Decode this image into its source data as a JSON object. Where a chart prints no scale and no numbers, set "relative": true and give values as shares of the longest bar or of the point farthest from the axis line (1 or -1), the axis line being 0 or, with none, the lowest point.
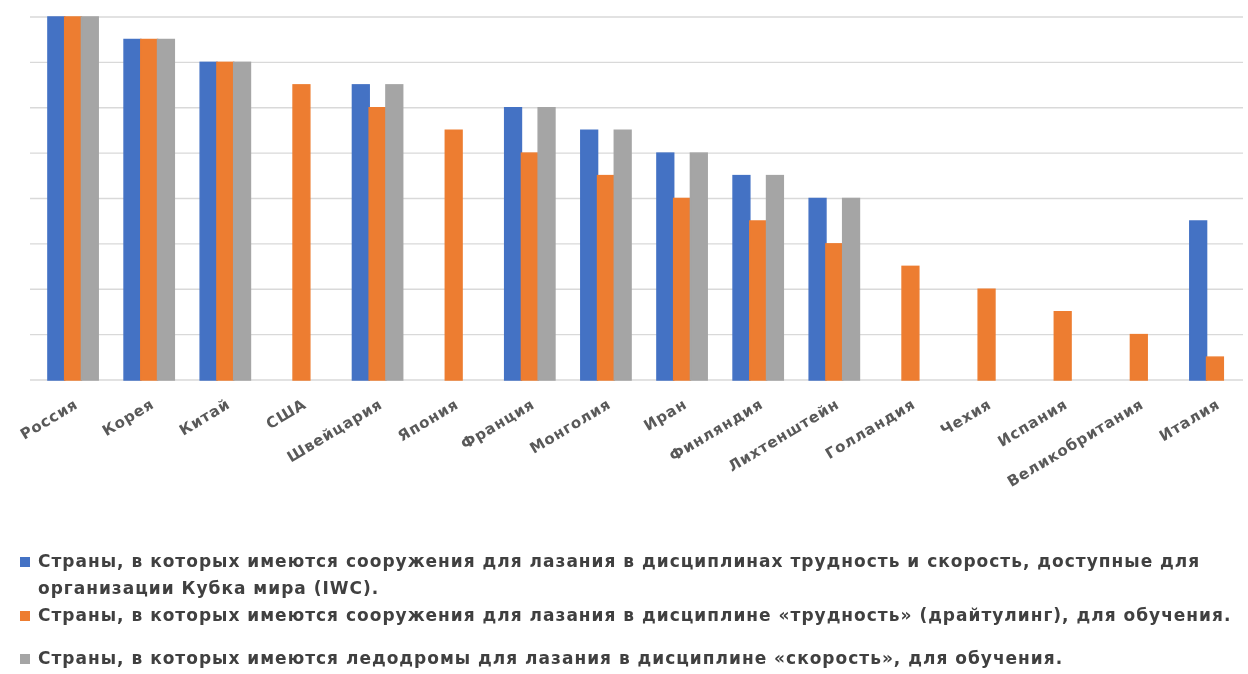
{
  "chart_data": {
    "type": "bar",
    "relative": true,
    "grid": "y",
    "legend": "bottom",
    "categories": [
      "Россия",
      "Корея",
      "Китай",
      "США",
      "Швейцария",
      "Япония",
      "Франция",
      "Монголия",
      "Иран",
      "Финляндия",
      "Лихтенштейн",
      "Голландия",
      "Чехия",
      "Испания",
      "Великобритания",
      "Италия"
    ],
    "series": [
      {
        "name": "Страны, в которых имеются сооружения для лазания в дисциплинах трудность и скорость, доступные для организации Кубка мира (IWC).",
        "color": "#4472c4",
        "values": [
          1,
          0.938,
          0.875,
          0,
          0.813,
          0,
          0.75,
          0.688,
          0.625,
          0.563,
          0.5,
          0,
          0,
          0,
          0,
          0.438
        ]
      },
      {
        "name": "Страны, в которых имеются сооружения для лазания в дисциплине «трудность» (драйтулинг), для обучения.",
        "color": "#ed7d31",
        "values": [
          1,
          0.938,
          0.875,
          0.813,
          0.75,
          0.688,
          0.625,
          0.563,
          0.5,
          0.438,
          0.375,
          0.313,
          0.25,
          0.188,
          0.125,
          0.063
        ]
      },
      {
        "name": "Страны, в которых имеются ледодромы для лазания в дисциплине «скорость», для обучения.",
        "color": "#a5a5a5",
        "values": [
          1,
          0.938,
          0.875,
          0,
          0.813,
          0,
          0.75,
          0.688,
          0.625,
          0.563,
          0.5,
          0,
          0,
          0,
          0,
          0
        ]
      }
    ]
  }
}
